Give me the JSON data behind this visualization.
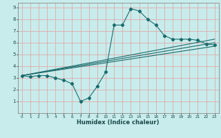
{
  "xlabel": "Humidex (Indice chaleur)",
  "bg_color": "#c8ecec",
  "grid_color": "#e0aaaa",
  "line_color": "#1a6b6b",
  "xlim": [
    -0.5,
    23.5
  ],
  "ylim": [
    0,
    9.4
  ],
  "xticks": [
    0,
    1,
    2,
    3,
    4,
    5,
    6,
    7,
    8,
    9,
    10,
    11,
    12,
    13,
    14,
    15,
    16,
    17,
    18,
    19,
    20,
    21,
    22,
    23
  ],
  "yticks": [
    1,
    2,
    3,
    4,
    5,
    6,
    7,
    8,
    9
  ],
  "series1_x": [
    0,
    1,
    2,
    3,
    4,
    5,
    6,
    7,
    8,
    9,
    10,
    11,
    12,
    13,
    14,
    15,
    16,
    17,
    18,
    19,
    20,
    21,
    22,
    23
  ],
  "series1_y": [
    3.2,
    3.1,
    3.2,
    3.2,
    3.0,
    2.8,
    2.5,
    1.0,
    1.3,
    2.3,
    3.5,
    7.5,
    7.5,
    8.9,
    8.7,
    8.0,
    7.5,
    6.6,
    6.3,
    6.3,
    6.3,
    6.2,
    5.9,
    5.8
  ],
  "series2_x": [
    0,
    23
  ],
  "series2_y": [
    3.2,
    6.0
  ],
  "series3_x": [
    0,
    23
  ],
  "series3_y": [
    3.2,
    6.3
  ],
  "series4_x": [
    0,
    23
  ],
  "series4_y": [
    3.2,
    5.7
  ]
}
